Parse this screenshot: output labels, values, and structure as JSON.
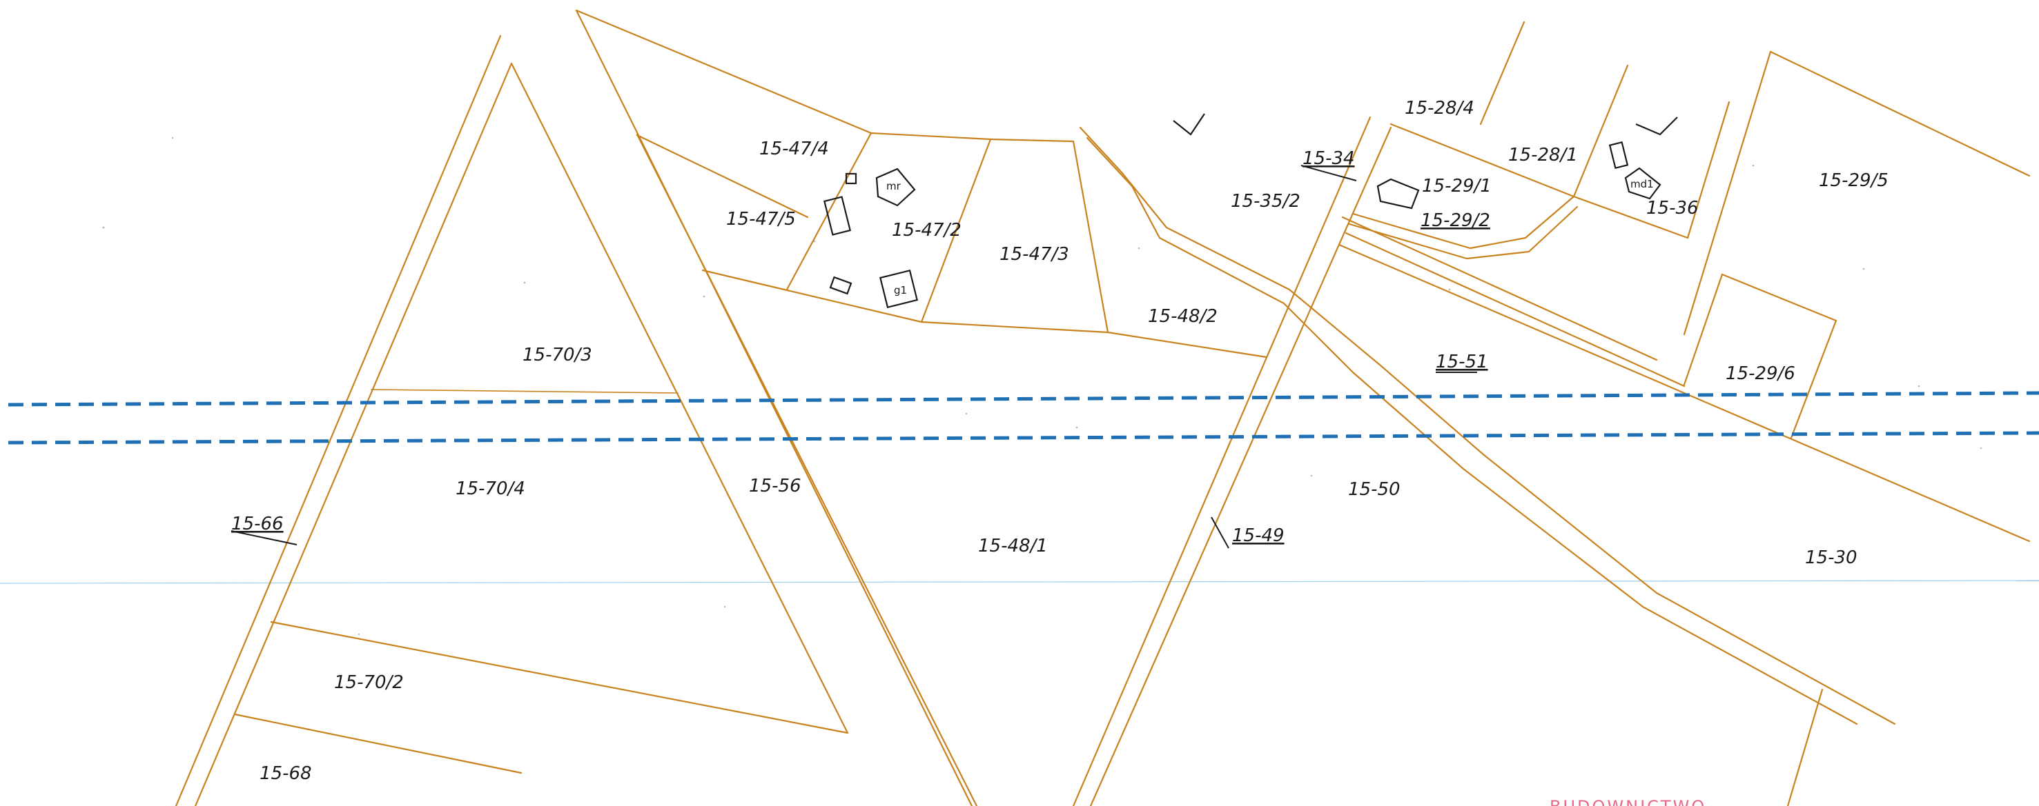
{
  "map": {
    "colors": {
      "parcel_line": "#c8821e",
      "pipeline": "#1f6fb5",
      "guide_line": "#9fd0f0",
      "building": "#1a1a1a",
      "stamp": "#e86a8a"
    },
    "pipeline_corridor": {
      "style": "blue dashed double line",
      "color": "#1f6fb5"
    },
    "parcels": {
      "p15_47_4": "15-47/4",
      "p15_47_5": "15-47/5",
      "p15_47_2": "15-47/2",
      "p15_47_3": "15-47/3",
      "p15_48_2": "15-48/2",
      "p15_48_1": "15-48/1",
      "p15_70_3": "15-70/3",
      "p15_70_4": "15-70/4",
      "p15_70_2": "15-70/2",
      "p15_68": "15-68",
      "p15_66": "15-66",
      "p15_56": "15-56",
      "p15_35_2": "15-35/2",
      "p15_34": "15-34",
      "p15_28_4": "15-28/4",
      "p15_28_1": "15-28/1",
      "p15_29_1": "15-29/1",
      "p15_29_2": "15-29/2",
      "p15_36": "15-36",
      "p15_29_5": "15-29/5",
      "p15_29_6": "15-29/6",
      "p15_51": "15-51",
      "p15_50": "15-50",
      "p15_49": "15-49",
      "p15_30": "15-30"
    },
    "buildings": {
      "mr": "mr",
      "g1": "g1",
      "md1": "md1"
    },
    "stamp": {
      "icon": "red-stamp-icon",
      "text": "BUDOWNICTWO"
    }
  }
}
